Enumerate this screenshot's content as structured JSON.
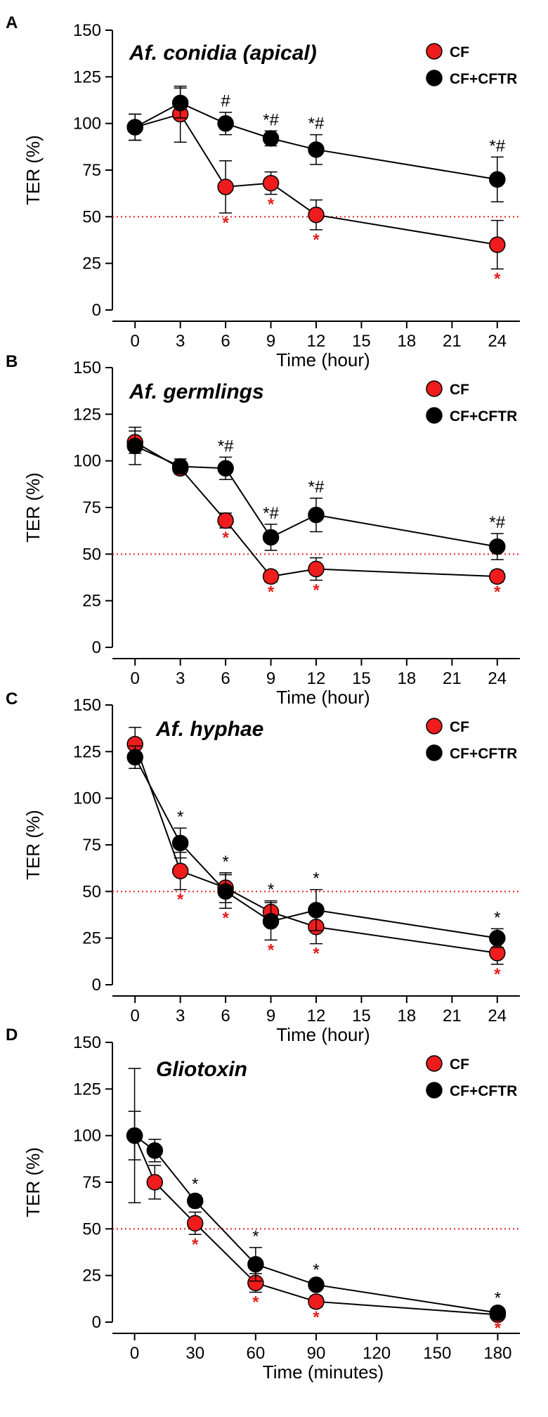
{
  "figure": {
    "colors": {
      "cf": "#ee1c1c",
      "cftr": "#000000",
      "threshold": "#e41e1e",
      "sig_red": "#e41e1e",
      "sig_black": "#000000"
    },
    "legend": {
      "cf_label": "CF",
      "cftr_label": "CF+CFTR"
    }
  },
  "chart_data": [
    {
      "panel": "A",
      "type": "line",
      "title": "Af. conidia (apical)",
      "xlabel": "Time (hour)",
      "ylabel": "TER (%)",
      "x_ticks": [
        0,
        3,
        6,
        9,
        12,
        15,
        18,
        21,
        24
      ],
      "x_tick_labels": [
        "0",
        "3",
        "6",
        "9",
        "12",
        "15",
        "18",
        "21",
        "24"
      ],
      "xlim": [
        -1.5,
        25.5
      ],
      "y_ticks": [
        0,
        25,
        50,
        75,
        100,
        125,
        150
      ],
      "ylim": [
        0,
        150
      ],
      "threshold": 50,
      "series": [
        {
          "name": "CF",
          "x": [
            0,
            3,
            6,
            9,
            12,
            24
          ],
          "values": [
            98,
            105,
            66,
            68,
            51,
            35
          ],
          "errors": [
            7,
            15,
            14,
            6,
            8,
            13
          ]
        },
        {
          "name": "CF+CFTR",
          "x": [
            0,
            3,
            6,
            9,
            12,
            24
          ],
          "values": [
            98,
            111,
            100,
            92,
            86,
            70
          ],
          "errors": [
            7,
            8,
            6,
            4,
            8,
            12
          ]
        }
      ],
      "annotations_top": [
        {
          "x": 6,
          "text": "#"
        },
        {
          "x": 9,
          "text": "*#"
        },
        {
          "x": 12,
          "text": "*#"
        },
        {
          "x": 24,
          "text": "*#"
        }
      ],
      "annotations_bottom": [
        {
          "x": 6,
          "text": "*"
        },
        {
          "x": 9,
          "text": "*"
        },
        {
          "x": 12,
          "text": "*"
        },
        {
          "x": 24,
          "text": "*"
        }
      ]
    },
    {
      "panel": "B",
      "type": "line",
      "title": "Af. germlings",
      "xlabel": "Time (hour)",
      "ylabel": "TER (%)",
      "x_ticks": [
        0,
        3,
        6,
        9,
        12,
        15,
        18,
        21,
        24
      ],
      "x_tick_labels": [
        "0",
        "3",
        "6",
        "9",
        "12",
        "15",
        "18",
        "21",
        "24"
      ],
      "xlim": [
        -1.5,
        25.5
      ],
      "y_ticks": [
        0,
        25,
        50,
        75,
        100,
        125,
        150
      ],
      "ylim": [
        0,
        150
      ],
      "threshold": 50,
      "series": [
        {
          "name": "CF",
          "x": [
            0,
            3,
            6,
            9,
            12,
            24
          ],
          "values": [
            110,
            96,
            68,
            38,
            42,
            38
          ],
          "errors": [
            6,
            3,
            4,
            3,
            6,
            3
          ]
        },
        {
          "name": "CF+CFTR",
          "x": [
            0,
            3,
            6,
            9,
            12,
            24
          ],
          "values": [
            108,
            97,
            96,
            59,
            71,
            54
          ],
          "errors": [
            10,
            4,
            6,
            7,
            9,
            7
          ]
        }
      ],
      "annotations_top": [
        {
          "x": 6,
          "text": "*#"
        },
        {
          "x": 9,
          "text": "*#"
        },
        {
          "x": 12,
          "text": "*#"
        },
        {
          "x": 24,
          "text": "*#"
        }
      ],
      "annotations_bottom": [
        {
          "x": 6,
          "text": "*"
        },
        {
          "x": 9,
          "text": "*"
        },
        {
          "x": 12,
          "text": "*"
        },
        {
          "x": 24,
          "text": "*"
        }
      ]
    },
    {
      "panel": "C",
      "type": "line",
      "title": "Af. hyphae",
      "xlabel": "Time (hour)",
      "ylabel": "TER (%)",
      "x_ticks": [
        0,
        3,
        6,
        9,
        12,
        15,
        18,
        21,
        24
      ],
      "x_tick_labels": [
        "0",
        "3",
        "6",
        "9",
        "12",
        "15",
        "18",
        "21",
        "24"
      ],
      "xlim": [
        -1.5,
        25.5
      ],
      "y_ticks": [
        0,
        25,
        50,
        75,
        100,
        125,
        150
      ],
      "ylim": [
        0,
        150
      ],
      "threshold": 50,
      "series": [
        {
          "name": "CF",
          "x": [
            0,
            3,
            6,
            9,
            12,
            24
          ],
          "values": [
            129,
            61,
            52,
            39,
            31,
            17
          ],
          "errors": [
            9,
            10,
            8,
            6,
            9,
            6
          ]
        },
        {
          "name": "CF+CFTR",
          "x": [
            0,
            3,
            6,
            9,
            12,
            24
          ],
          "values": [
            122,
            76,
            50,
            34,
            40,
            25
          ],
          "errors": [
            6,
            8,
            9,
            10,
            11,
            5
          ]
        }
      ],
      "annotations_top": [
        {
          "x": 3,
          "text": "*"
        },
        {
          "x": 6,
          "text": "*"
        },
        {
          "x": 9,
          "text": "*"
        },
        {
          "x": 12,
          "text": "*"
        },
        {
          "x": 24,
          "text": "*"
        }
      ],
      "annotations_bottom": [
        {
          "x": 3,
          "text": "*"
        },
        {
          "x": 6,
          "text": "*"
        },
        {
          "x": 9,
          "text": "*"
        },
        {
          "x": 12,
          "text": "*"
        },
        {
          "x": 24,
          "text": "*"
        }
      ]
    },
    {
      "panel": "D",
      "type": "line",
      "title": "Gliotoxin",
      "xlabel": "Time (minutes)",
      "ylabel": "TER (%)",
      "x_ticks": [
        0,
        30,
        60,
        90,
        120,
        150,
        180
      ],
      "x_tick_labels": [
        "0",
        "30",
        "60",
        "90",
        "120",
        "150",
        "180"
      ],
      "xlim": [
        -11,
        191
      ],
      "y_ticks": [
        0,
        25,
        50,
        75,
        100,
        125,
        150
      ],
      "ylim": [
        0,
        150
      ],
      "threshold": 50,
      "series": [
        {
          "name": "CF",
          "x": [
            0,
            10,
            30,
            60,
            90,
            180
          ],
          "values": [
            100,
            75,
            53,
            21,
            11,
            4
          ],
          "errors": [
            13,
            9,
            6,
            5,
            3,
            2
          ]
        },
        {
          "name": "CF+CFTR",
          "x": [
            0,
            10,
            30,
            60,
            90,
            180
          ],
          "values": [
            100,
            92,
            65,
            31,
            20,
            5
          ],
          "errors": [
            36,
            6,
            3,
            9,
            2,
            2
          ]
        }
      ],
      "annotations_top": [
        {
          "x": 30,
          "text": "*"
        },
        {
          "x": 60,
          "text": "*"
        },
        {
          "x": 90,
          "text": "*"
        },
        {
          "x": 180,
          "text": "*"
        }
      ],
      "annotations_bottom": [
        {
          "x": 30,
          "text": "*"
        },
        {
          "x": 60,
          "text": "*"
        },
        {
          "x": 90,
          "text": "*"
        },
        {
          "x": 180,
          "text": "*"
        }
      ]
    }
  ]
}
